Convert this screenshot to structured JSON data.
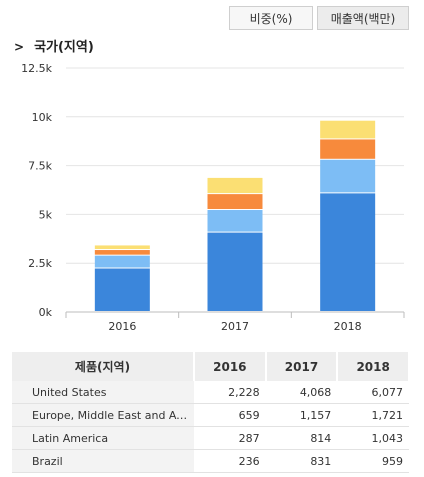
{
  "tabs": {
    "ratio_label": "비중(%)",
    "sales_label": "매출액(백만)"
  },
  "section_title": "국가(지역)",
  "table": {
    "header": [
      "제품(지역)",
      "2016",
      "2017",
      "2018"
    ],
    "rows": [
      {
        "name": "United States",
        "values": [
          "2,228",
          "4,068",
          "6,077"
        ]
      },
      {
        "name": "Europe, Middle East and Africa",
        "values": [
          "659",
          "1,157",
          "1,721"
        ]
      },
      {
        "name": "Latin America",
        "values": [
          "287",
          "814",
          "1,043"
        ]
      },
      {
        "name": "Brazil",
        "values": [
          "236",
          "831",
          "959"
        ]
      }
    ]
  },
  "chart_data": {
    "type": "bar",
    "stacked": true,
    "categories": [
      "2016",
      "2017",
      "2018"
    ],
    "series": [
      {
        "name": "United States",
        "color": "#3b86db",
        "values": [
          2228,
          4068,
          6077
        ]
      },
      {
        "name": "Europe, Middle East and Africa",
        "color": "#7dbdf5",
        "values": [
          659,
          1157,
          1721
        ]
      },
      {
        "name": "Latin America",
        "color": "#f78a3c",
        "values": [
          287,
          814,
          1043
        ]
      },
      {
        "name": "Brazil",
        "color": "#fbdf73",
        "values": [
          236,
          831,
          959
        ]
      }
    ],
    "ylim": [
      0,
      12500
    ],
    "yticks": [
      0,
      2500,
      5000,
      7500,
      10000,
      12500
    ],
    "ytick_labels": [
      "0k",
      "2.5k",
      "5k",
      "7.5k",
      "10k",
      "12.5k"
    ],
    "grid": true,
    "legend": "none"
  }
}
